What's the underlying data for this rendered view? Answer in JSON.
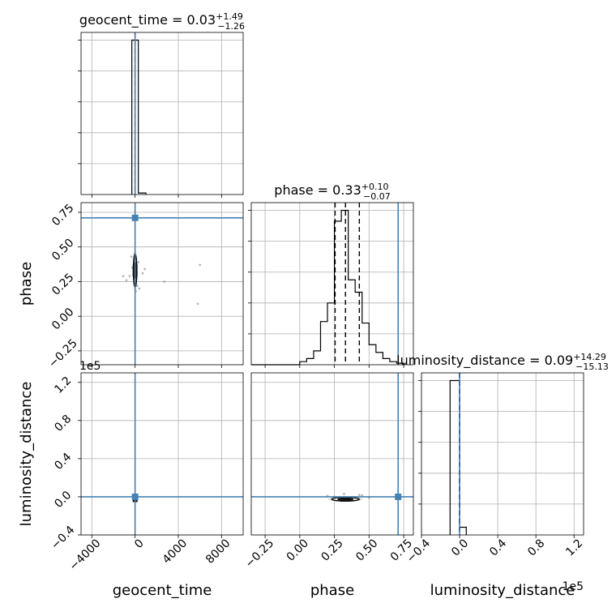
{
  "chart_data": {
    "type": "corner",
    "parameters": [
      {
        "name": "geocent_time",
        "axis_label": "geocent_time",
        "title_text": "geocent_time = 0.03",
        "title_plus": "+1.49",
        "title_minus": "−1.26",
        "median": 0.03,
        "err_plus": 1.49,
        "err_minus": 1.26,
        "range": [
          -5000,
          10000
        ],
        "ticks": [
          -4000,
          0,
          4000,
          8000
        ],
        "tick_labels": [
          "−4000",
          "0",
          "4000",
          "8000"
        ],
        "offset_text": "",
        "truth": 0,
        "hist_bins": [
          {
            "x0": -300,
            "x1": 0,
            "value": 1.0
          },
          {
            "x0": 0,
            "x1": 300,
            "value": 1.0
          },
          {
            "x0": 300,
            "x1": 1000,
            "value": 0.01
          }
        ],
        "quantile_lines": [
          -1.23,
          0.03,
          1.52
        ]
      },
      {
        "name": "phase",
        "axis_label": "phase",
        "title_text": "phase = 0.33",
        "title_plus": "+0.10",
        "title_minus": "−0.07",
        "median": 0.33,
        "err_plus": 0.1,
        "err_minus": 0.07,
        "range": [
          -0.35,
          0.82
        ],
        "ticks": [
          -0.25,
          0.0,
          0.25,
          0.5,
          0.75
        ],
        "tick_labels": [
          "−0.25",
          "0.00",
          "0.25",
          "0.50",
          "0.75"
        ],
        "offset_text": "",
        "truth": 0.71,
        "hist_bins": [
          {
            "x0": -0.35,
            "x1": 0.0,
            "value": 0.0
          },
          {
            "x0": 0.0,
            "x1": 0.05,
            "value": 0.02
          },
          {
            "x0": 0.05,
            "x1": 0.1,
            "value": 0.04
          },
          {
            "x0": 0.1,
            "x1": 0.15,
            "value": 0.09
          },
          {
            "x0": 0.15,
            "x1": 0.2,
            "value": 0.28
          },
          {
            "x0": 0.2,
            "x1": 0.25,
            "value": 0.4
          },
          {
            "x0": 0.25,
            "x1": 0.3,
            "value": 0.93
          },
          {
            "x0": 0.3,
            "x1": 0.35,
            "value": 1.0
          },
          {
            "x0": 0.35,
            "x1": 0.4,
            "value": 0.55
          },
          {
            "x0": 0.4,
            "x1": 0.45,
            "value": 0.47
          },
          {
            "x0": 0.45,
            "x1": 0.5,
            "value": 0.27
          },
          {
            "x0": 0.5,
            "x1": 0.55,
            "value": 0.13
          },
          {
            "x0": 0.55,
            "x1": 0.6,
            "value": 0.08
          },
          {
            "x0": 0.6,
            "x1": 0.65,
            "value": 0.04
          },
          {
            "x0": 0.65,
            "x1": 0.7,
            "value": 0.02
          },
          {
            "x0": 0.7,
            "x1": 0.75,
            "value": 0.01
          }
        ],
        "quantile_lines": [
          0.255,
          0.33,
          0.43
        ]
      },
      {
        "name": "luminosity_distance",
        "axis_label": "luminosity_distance",
        "title_text": "luminosity_distance = 0.09",
        "title_plus": "+14.29",
        "title_minus": "−15.13",
        "median": 0.09,
        "err_plus": 14.29,
        "err_minus": 15.13,
        "range": [
          -0.4,
          1.3
        ],
        "ticks": [
          -0.4,
          0.0,
          0.4,
          0.8,
          1.2
        ],
        "tick_labels": [
          "−0.4",
          "0.0",
          "0.4",
          "0.8",
          "1.2"
        ],
        "offset_text": "1e5",
        "truth": 0.0,
        "hist_bins": [
          {
            "x0": -0.1,
            "x1": 0.0,
            "value": 1.0
          },
          {
            "x0": 0.0,
            "x1": 0.07,
            "value": 0.05
          }
        ],
        "quantile_lines": [
          -0.0015,
          0.0,
          0.0015
        ]
      }
    ],
    "pairs": [
      {
        "row": 1,
        "col": 0,
        "x_param": "geocent_time",
        "y_param": "phase",
        "core": {
          "x": 0,
          "y": 0.33,
          "half_width_x": 160,
          "half_height_y": 0.12
        },
        "scatter": [
          {
            "x": -150,
            "y": 0.3
          },
          {
            "x": 120,
            "y": 0.27
          },
          {
            "x": -90,
            "y": 0.41
          },
          {
            "x": 200,
            "y": 0.22
          },
          {
            "x": -250,
            "y": 0.35
          },
          {
            "x": 60,
            "y": 0.18
          },
          {
            "x": -60,
            "y": 0.45
          },
          {
            "x": 300,
            "y": 0.39
          },
          {
            "x": -500,
            "y": 0.29
          },
          {
            "x": 700,
            "y": 0.31
          },
          {
            "x": -1100,
            "y": 0.29
          },
          {
            "x": 2700,
            "y": 0.25
          },
          {
            "x": 6000,
            "y": 0.37
          },
          {
            "x": 5800,
            "y": 0.09
          },
          {
            "x": -800,
            "y": 0.26
          },
          {
            "x": 900,
            "y": 0.34
          },
          {
            "x": 400,
            "y": 0.2
          },
          {
            "x": -350,
            "y": 0.43
          }
        ]
      },
      {
        "row": 2,
        "col": 0,
        "x_param": "geocent_time",
        "y_param": "luminosity_distance",
        "core": {
          "x": 0,
          "y": -0.03,
          "half_width_x": 150,
          "half_height_y": 0.02
        },
        "scatter": []
      },
      {
        "row": 2,
        "col": 1,
        "x_param": "phase",
        "y_param": "luminosity_distance",
        "core": {
          "x": 0.33,
          "y": -0.025,
          "half_width_x": 0.1,
          "half_height_y": 0.02
        },
        "scatter": [
          {
            "x": 0.2,
            "y": 0.01
          },
          {
            "x": 0.45,
            "y": 0.015
          },
          {
            "x": 0.38,
            "y": -0.04
          },
          {
            "x": 0.27,
            "y": -0.035
          },
          {
            "x": 0.5,
            "y": -0.01
          },
          {
            "x": 0.32,
            "y": 0.03
          },
          {
            "x": 0.43,
            "y": 0.02
          },
          {
            "x": 0.25,
            "y": 0.0
          }
        ]
      }
    ],
    "truth_color": "#4682b4",
    "grid": true
  }
}
